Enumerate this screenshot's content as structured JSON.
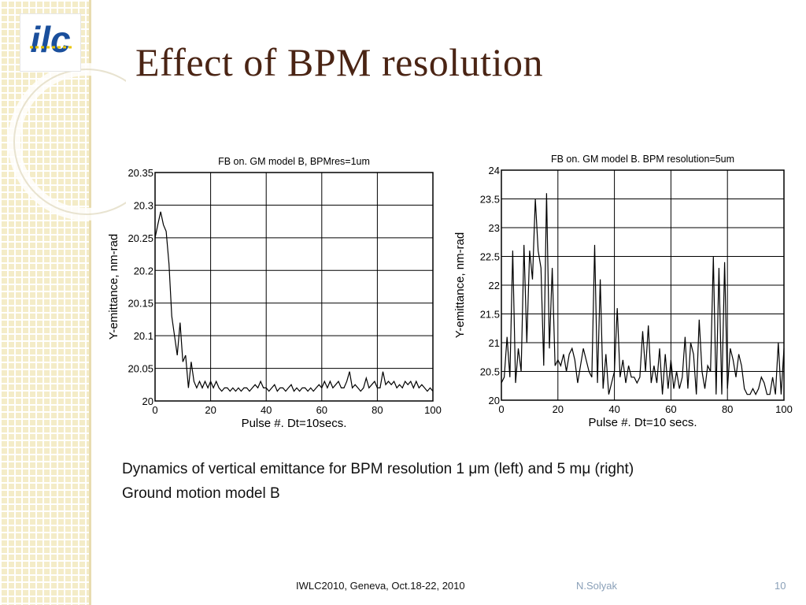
{
  "slide": {
    "title": "Effect of BPM resolution",
    "caption_line1": "Dynamics of vertical emittance for BPM resolution 1 μm (left) and 5 mμ (right)",
    "caption_line2": "Ground motion model B",
    "footer_event": "IWLC2010, Geneva, Oct.18-22, 2010",
    "footer_author": "N.Solyak",
    "page_number": "10",
    "accent_color": "#4a2414",
    "footer_author_color": "#8aa0b8",
    "logo_text": "ilc",
    "logo_color": "#1a4f9c"
  },
  "chart_data": [
    {
      "type": "line",
      "title": "FB on. GM model B, BPMres=1um",
      "xlabel": "Pulse #. Dt=10secs.",
      "ylabel": "Y-emittance, nm-rad",
      "xlim": [
        0,
        100
      ],
      "ylim": [
        20,
        20.35
      ],
      "xticks": [
        "0",
        "20",
        "40",
        "60",
        "80",
        "100"
      ],
      "yticks": [
        "20",
        "20.05",
        "20.1",
        "20.15",
        "20.2",
        "20.25",
        "20.3",
        "20.35"
      ],
      "grid": true,
      "x": [
        0,
        1,
        2,
        3,
        4,
        5,
        6,
        7,
        8,
        9,
        10,
        11,
        12,
        13,
        14,
        15,
        16,
        17,
        18,
        19,
        20,
        21,
        22,
        23,
        24,
        25,
        26,
        27,
        28,
        29,
        30,
        31,
        32,
        33,
        34,
        35,
        36,
        37,
        38,
        39,
        40,
        41,
        42,
        43,
        44,
        45,
        46,
        47,
        48,
        49,
        50,
        51,
        52,
        53,
        54,
        55,
        56,
        57,
        58,
        59,
        60,
        61,
        62,
        63,
        64,
        65,
        66,
        67,
        68,
        69,
        70,
        71,
        72,
        73,
        74,
        75,
        76,
        77,
        78,
        79,
        80,
        81,
        82,
        83,
        84,
        85,
        86,
        87,
        88,
        89,
        90,
        91,
        92,
        93,
        94,
        95,
        96,
        97,
        98,
        99,
        100
      ],
      "y": [
        20.25,
        20.27,
        20.29,
        20.27,
        20.26,
        20.21,
        20.13,
        20.1,
        20.07,
        20.12,
        20.06,
        20.07,
        20.02,
        20.06,
        20.03,
        20.02,
        20.03,
        20.02,
        20.03,
        20.02,
        20.03,
        20.02,
        20.03,
        20.02,
        20.015,
        20.02,
        20.02,
        20.015,
        20.02,
        20.015,
        20.02,
        20.015,
        20.02,
        20.02,
        20.015,
        20.02,
        20.025,
        20.02,
        20.03,
        20.02,
        20.02,
        20.015,
        20.02,
        20.025,
        20.015,
        20.02,
        20.02,
        20.015,
        20.02,
        20.025,
        20.015,
        20.02,
        20.015,
        20.02,
        20.02,
        20.015,
        20.02,
        20.015,
        20.02,
        20.025,
        20.02,
        20.03,
        20.02,
        20.03,
        20.02,
        20.025,
        20.03,
        20.02,
        20.02,
        20.03,
        20.045,
        20.02,
        20.025,
        20.02,
        20.015,
        20.02,
        20.035,
        20.02,
        20.025,
        20.03,
        20.02,
        20.02,
        20.045,
        20.025,
        20.03,
        20.025,
        20.03,
        20.02,
        20.025,
        20.02,
        20.03,
        20.025,
        20.03,
        20.02,
        20.03,
        20.02,
        20.025,
        20.02,
        20.015,
        20.02,
        20.015
      ]
    },
    {
      "type": "line",
      "title": "FB on. GM model B. BPM resolution=5um",
      "xlabel": "Pulse #. Dt=10 secs.",
      "ylabel": "Y-emittance, nm-rad",
      "xlim": [
        0,
        100
      ],
      "ylim": [
        20,
        24
      ],
      "xticks": [
        "0",
        "20",
        "40",
        "60",
        "80",
        "100"
      ],
      "yticks": [
        "20",
        "20.5",
        "21",
        "21.5",
        "22",
        "22.5",
        "23",
        "23.5",
        "24"
      ],
      "grid": true,
      "x": [
        0,
        1,
        2,
        3,
        4,
        5,
        6,
        7,
        8,
        9,
        10,
        11,
        12,
        13,
        14,
        15,
        16,
        17,
        18,
        19,
        20,
        21,
        22,
        23,
        24,
        25,
        26,
        27,
        28,
        29,
        30,
        31,
        32,
        33,
        34,
        35,
        36,
        37,
        38,
        39,
        40,
        41,
        42,
        43,
        44,
        45,
        46,
        47,
        48,
        49,
        50,
        51,
        52,
        53,
        54,
        55,
        56,
        57,
        58,
        59,
        60,
        61,
        62,
        63,
        64,
        65,
        66,
        67,
        68,
        69,
        70,
        71,
        72,
        73,
        74,
        75,
        76,
        77,
        78,
        79,
        80,
        81,
        82,
        83,
        84,
        85,
        86,
        87,
        88,
        89,
        90,
        91,
        92,
        93,
        94,
        95,
        96,
        97,
        98,
        99,
        100
      ],
      "y": [
        20.3,
        20.4,
        21.1,
        20.4,
        22.6,
        20.3,
        20.9,
        20.5,
        22.7,
        21.0,
        22.6,
        22.1,
        23.5,
        22.6,
        22.3,
        20.6,
        23.6,
        20.9,
        22.3,
        20.6,
        20.7,
        20.6,
        20.8,
        20.5,
        20.8,
        20.9,
        20.7,
        20.3,
        20.6,
        20.9,
        20.7,
        20.5,
        20.4,
        22.7,
        20.3,
        22.1,
        20.2,
        20.8,
        20.1,
        20.3,
        20.5,
        21.6,
        20.4,
        20.7,
        20.3,
        20.6,
        20.4,
        20.4,
        20.3,
        20.4,
        21.2,
        20.5,
        21.3,
        20.3,
        20.6,
        20.3,
        20.9,
        20.1,
        20.8,
        20.2,
        20.7,
        20.2,
        20.5,
        20.2,
        20.4,
        21.1,
        20.2,
        21.0,
        20.8,
        20.1,
        21.4,
        20.5,
        20.2,
        20.6,
        20.5,
        22.5,
        20.1,
        22.3,
        20.1,
        22.4,
        20.2,
        20.9,
        20.7,
        20.4,
        20.8,
        20.6,
        20.2,
        20.1,
        20.1,
        20.2,
        20.1,
        20.2,
        20.4,
        20.3,
        20.1,
        20.1,
        20.4,
        20.1,
        21.0,
        20.1,
        20.9
      ]
    }
  ]
}
